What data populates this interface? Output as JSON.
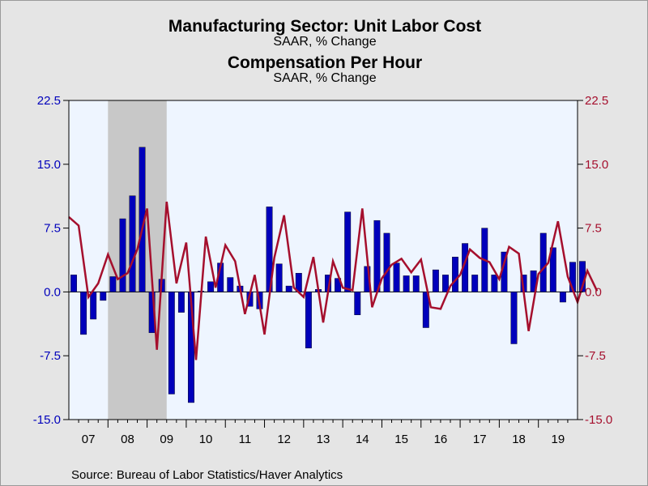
{
  "colors": {
    "bars": "#0000bb",
    "line": "#a50f2d",
    "left_axis_text": "#0000bb",
    "right_axis_text": "#a50f2d",
    "plot_bg": "#eef5ff",
    "recession": "#c8c8c8"
  },
  "titles": {
    "primary": "Manufacturing Sector: Unit Labor Cost",
    "primary_sub": "SAAR, % Change",
    "secondary": "Compensation Per Hour",
    "secondary_sub": "SAAR, % Change"
  },
  "source": "Source:  Bureau of Labor Statistics/Haver Analytics",
  "chart_data": {
    "type": "bar",
    "x_start": "2007 Q1",
    "x_labels": [
      "07",
      "08",
      "09",
      "10",
      "11",
      "12",
      "13",
      "14",
      "15",
      "16",
      "17",
      "18",
      "19"
    ],
    "y_ticks": [
      "22.5",
      "15.0",
      "7.5",
      "0.0",
      "-7.5",
      "-15.0"
    ],
    "ylim": [
      -15,
      22.5
    ],
    "recession": [
      "2008 Q1",
      "2009 Q2"
    ],
    "series": [
      {
        "name": "Manufacturing Sector: Unit Labor Cost",
        "type": "bar",
        "axis": "left",
        "values": [
          2.0,
          -5.0,
          -3.2,
          -1.0,
          1.8,
          8.6,
          11.3,
          17.0,
          -4.8,
          1.5,
          -12.0,
          -2.4,
          -13.0,
          0.1,
          1.2,
          3.4,
          1.7,
          0.7,
          -1.7,
          -2.0,
          10.0,
          3.3,
          0.7,
          2.2,
          -6.6,
          0.3,
          2.0,
          1.6,
          9.4,
          -2.7,
          3.0,
          8.4,
          6.9,
          3.4,
          1.9,
          1.9,
          -4.2,
          2.6,
          2.0,
          4.1,
          5.7,
          2.0,
          7.5,
          2.0,
          4.7,
          -6.1,
          2.0,
          2.5,
          6.9,
          5.2,
          -1.2,
          3.5,
          3.6
        ]
      },
      {
        "name": "Compensation Per Hour",
        "type": "line",
        "axis": "right",
        "values": [
          8.8,
          7.8,
          -0.6,
          1.0,
          4.4,
          1.5,
          2.2,
          5.0,
          9.8,
          -6.8,
          10.6,
          1.0,
          5.8,
          -8.0,
          6.5,
          0.5,
          5.5,
          3.6,
          -2.6,
          2.0,
          -5.0,
          4.0,
          9.0,
          0.5,
          -0.6,
          4.1,
          -3.6,
          3.6,
          0.5,
          0.2,
          9.8,
          -1.8,
          1.6,
          3.2,
          3.9,
          2.3,
          3.8,
          -1.8,
          -2.0,
          0.7,
          2.0,
          5.0,
          4.0,
          3.5,
          1.5,
          5.3,
          4.5,
          -4.6,
          2.1,
          3.4,
          8.3,
          1.8,
          -1.2,
          2.5,
          0.1
        ]
      }
    ]
  }
}
